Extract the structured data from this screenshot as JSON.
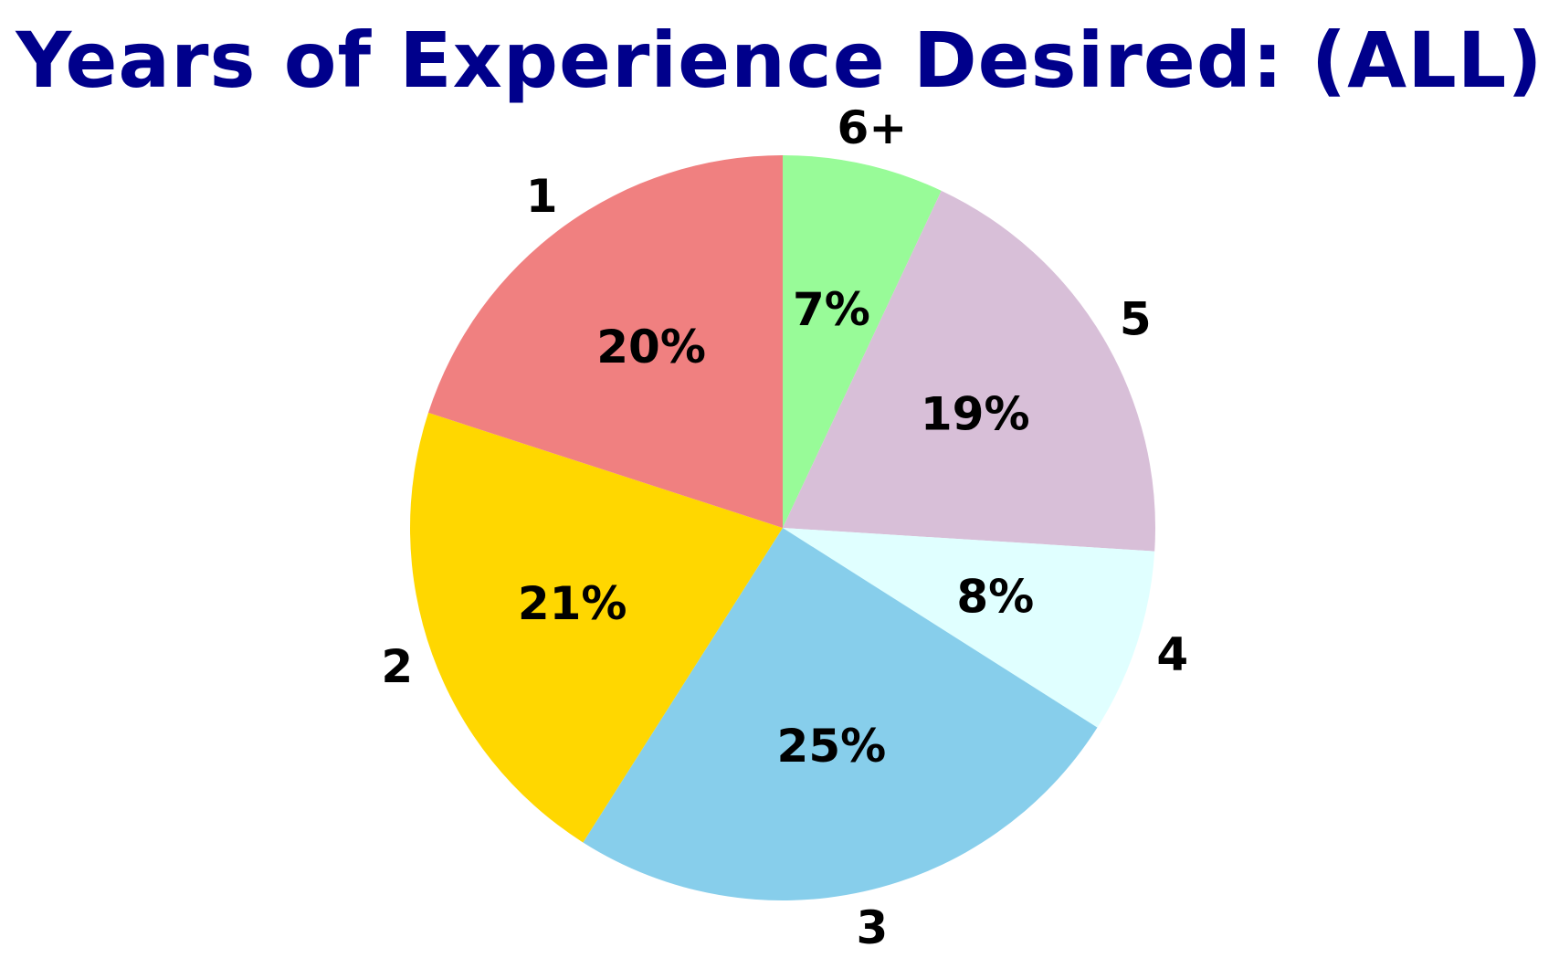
{
  "chart_data": {
    "type": "pie",
    "title": "Years of Experience Desired: (ALL)",
    "start_angle_deg": 90,
    "direction": "clockwise",
    "slices": [
      {
        "label": "6+",
        "value": 7,
        "value_label": "7%",
        "color": "#98fb98"
      },
      {
        "label": "5",
        "value": 19,
        "value_label": "19%",
        "color": "#d8bfd8"
      },
      {
        "label": "4",
        "value": 8,
        "value_label": "8%",
        "color": "#e0ffff"
      },
      {
        "label": "3",
        "value": 25,
        "value_label": "25%",
        "color": "#87ceeb"
      },
      {
        "label": "2",
        "value": 21,
        "value_label": "21%",
        "color": "#ffd700"
      },
      {
        "label": "1",
        "value": 20,
        "value_label": "20%",
        "color": "#f08080"
      }
    ]
  }
}
